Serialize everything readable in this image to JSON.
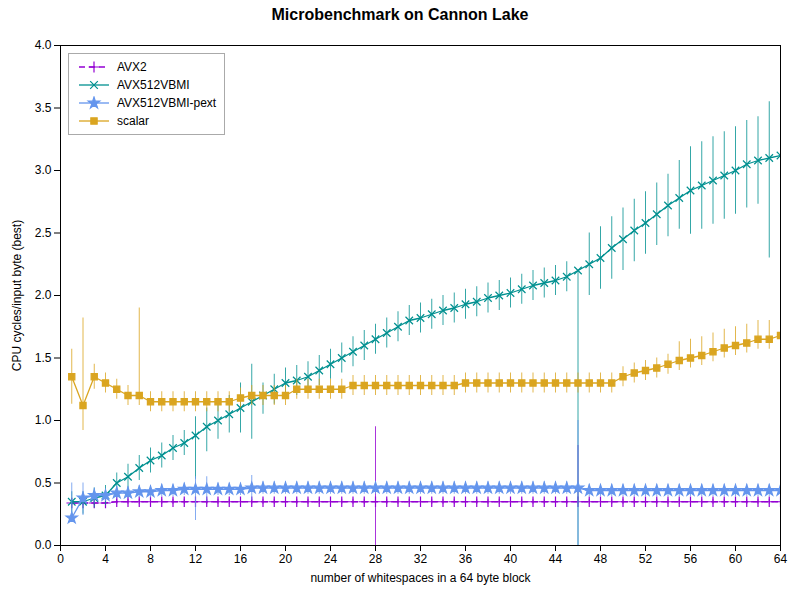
{
  "chart_data": {
    "type": "line",
    "title": "Microbenchmark on Cannon Lake",
    "x_label": "number of whitespaces in a 64 byte block",
    "y_label": "CPU cycles/input byte (best)",
    "x": [
      1,
      2,
      3,
      4,
      5,
      6,
      7,
      8,
      9,
      10,
      11,
      12,
      13,
      14,
      15,
      16,
      17,
      18,
      19,
      20,
      21,
      22,
      23,
      24,
      25,
      26,
      27,
      28,
      29,
      30,
      31,
      32,
      33,
      34,
      35,
      36,
      37,
      38,
      39,
      40,
      41,
      42,
      43,
      44,
      45,
      46,
      47,
      48,
      49,
      50,
      51,
      52,
      53,
      54,
      55,
      56,
      57,
      58,
      59,
      60,
      61,
      62,
      63,
      64
    ],
    "xlim": [
      0,
      64
    ],
    "ylim": [
      0,
      4
    ],
    "xticks": [
      0,
      4,
      8,
      12,
      16,
      20,
      24,
      28,
      32,
      36,
      40,
      44,
      48,
      52,
      56,
      60,
      64
    ],
    "yticks": [
      {
        "value": 0,
        "label": "0.0"
      },
      0.5,
      {
        "value": 1.0,
        "label": "1.0"
      },
      1.5,
      {
        "value": 2.0,
        "label": "2.0"
      },
      2.5,
      {
        "value": 3.0,
        "label": "3.0"
      },
      3.5,
      {
        "value": 4.0,
        "label": "4.0"
      }
    ],
    "grid": false,
    "legend": "upper left",
    "series": [
      {
        "name": "AVX2",
        "color": "#9400d3",
        "marker": "plus",
        "line_style": "dashed",
        "values": [
          0.34,
          0.34,
          0.34,
          0.34,
          0.35,
          0.35,
          0.35,
          0.35,
          0.35,
          0.35,
          0.35,
          0.35,
          0.35,
          0.35,
          0.35,
          0.35,
          0.35,
          0.35,
          0.35,
          0.35,
          0.35,
          0.35,
          0.35,
          0.35,
          0.35,
          0.35,
          0.35,
          0.35,
          0.35,
          0.35,
          0.35,
          0.35,
          0.35,
          0.35,
          0.35,
          0.35,
          0.35,
          0.35,
          0.35,
          0.35,
          0.35,
          0.35,
          0.35,
          0.35,
          0.35,
          0.35,
          0.35,
          0.35,
          0.35,
          0.35,
          0.35,
          0.35,
          0.35,
          0.35,
          0.35,
          0.35,
          0.35,
          0.35,
          0.35,
          0.35,
          0.35,
          0.35,
          0.35,
          0.35
        ],
        "errors_low": [
          0.02,
          0.02,
          0.02,
          0.02,
          0.02,
          0.02,
          0.02,
          0.02,
          0.02,
          0.02,
          0.02,
          0.02,
          0.02,
          0.02,
          0.02,
          0.02,
          0.02,
          0.02,
          0.02,
          0.02,
          0.02,
          0.02,
          0.02,
          0.02,
          0.02,
          0.02,
          0.02,
          0.35,
          0.02,
          0.02,
          0.02,
          0.02,
          0.02,
          0.02,
          0.02,
          0.02,
          0.02,
          0.02,
          0.02,
          0.02,
          0.02,
          0.02,
          0.02,
          0.02,
          0.02,
          0.02,
          0.02,
          0.02,
          0.02,
          0.02,
          0.02,
          0.02,
          0.02,
          0.02,
          0.02,
          0.02,
          0.02,
          0.02,
          0.02,
          0.02,
          0.02,
          0.02,
          0.02,
          0.02
        ],
        "errors_high": [
          0.02,
          0.02,
          0.02,
          0.02,
          0.02,
          0.02,
          0.02,
          0.02,
          0.02,
          0.02,
          0.02,
          0.02,
          0.02,
          0.02,
          0.02,
          0.02,
          0.02,
          0.02,
          0.02,
          0.02,
          0.02,
          0.02,
          0.02,
          0.02,
          0.02,
          0.02,
          0.02,
          0.6,
          0.02,
          0.02,
          0.02,
          0.02,
          0.02,
          0.02,
          0.02,
          0.02,
          0.02,
          0.02,
          0.02,
          0.02,
          0.02,
          0.02,
          0.02,
          0.02,
          0.02,
          0.45,
          0.02,
          0.02,
          0.02,
          0.02,
          0.02,
          0.02,
          0.02,
          0.02,
          0.02,
          0.02,
          0.02,
          0.02,
          0.02,
          0.02,
          0.02,
          0.02,
          0.02,
          0.02
        ]
      },
      {
        "name": "AVX512VBMI",
        "color": "#009090",
        "marker": "cross",
        "line_style": "solid",
        "values": [
          0.35,
          0.35,
          0.38,
          0.4,
          0.5,
          0.55,
          0.62,
          0.68,
          0.72,
          0.78,
          0.82,
          0.88,
          0.95,
          1.0,
          1.05,
          1.1,
          1.15,
          1.2,
          1.25,
          1.3,
          1.32,
          1.35,
          1.4,
          1.45,
          1.5,
          1.55,
          1.6,
          1.65,
          1.7,
          1.75,
          1.8,
          1.82,
          1.85,
          1.88,
          1.9,
          1.93,
          1.95,
          1.98,
          2.0,
          2.02,
          2.05,
          2.08,
          2.1,
          2.12,
          2.15,
          2.2,
          2.25,
          2.3,
          2.38,
          2.45,
          2.52,
          2.58,
          2.65,
          2.72,
          2.78,
          2.84,
          2.88,
          2.92,
          2.96,
          3.0,
          3.05,
          3.08,
          3.1,
          3.12
        ],
        "errors_low": [
          0.12,
          0.1,
          0.08,
          0.08,
          0.08,
          0.1,
          0.1,
          0.1,
          0.1,
          0.1,
          0.1,
          0.35,
          0.2,
          0.15,
          0.15,
          0.2,
          0.3,
          0.15,
          0.12,
          0.12,
          0.12,
          0.12,
          0.12,
          0.12,
          0.12,
          0.12,
          0.12,
          0.12,
          0.12,
          0.12,
          0.12,
          0.12,
          0.12,
          0.12,
          0.12,
          0.12,
          0.12,
          0.12,
          0.12,
          0.12,
          0.12,
          0.12,
          0.12,
          0.12,
          0.12,
          2.2,
          0.25,
          0.25,
          0.25,
          0.25,
          0.25,
          0.25,
          0.25,
          0.25,
          0.25,
          0.35,
          0.35,
          0.35,
          0.35,
          0.35,
          0.35,
          0.35,
          0.8,
          0.4
        ],
        "errors_high": [
          0.08,
          0.08,
          0.08,
          0.08,
          0.08,
          0.1,
          0.1,
          0.1,
          0.1,
          0.1,
          0.1,
          0.15,
          0.15,
          0.15,
          0.15,
          0.2,
          0.3,
          0.1,
          0.12,
          0.12,
          0.12,
          0.12,
          0.12,
          0.12,
          0.12,
          0.12,
          0.12,
          0.12,
          0.12,
          0.12,
          0.12,
          0.12,
          0.12,
          0.12,
          0.12,
          0.12,
          0.12,
          0.12,
          0.12,
          0.12,
          0.12,
          0.12,
          0.12,
          0.12,
          0.12,
          0.0,
          0.25,
          0.25,
          0.25,
          0.25,
          0.25,
          0.25,
          0.25,
          0.25,
          0.3,
          0.35,
          0.35,
          0.35,
          0.35,
          0.35,
          0.35,
          0.35,
          0.45,
          0.4
        ]
      },
      {
        "name": "AVX512VBMI-pext",
        "color": "#6495ed",
        "marker": "star",
        "line_style": "solid",
        "values": [
          0.22,
          0.38,
          0.4,
          0.4,
          0.42,
          0.42,
          0.43,
          0.43,
          0.44,
          0.44,
          0.45,
          0.45,
          0.45,
          0.45,
          0.45,
          0.45,
          0.46,
          0.46,
          0.46,
          0.46,
          0.46,
          0.46,
          0.46,
          0.46,
          0.46,
          0.46,
          0.46,
          0.46,
          0.46,
          0.46,
          0.46,
          0.46,
          0.46,
          0.46,
          0.46,
          0.46,
          0.46,
          0.46,
          0.46,
          0.46,
          0.46,
          0.46,
          0.46,
          0.46,
          0.46,
          0.46,
          0.44,
          0.44,
          0.44,
          0.44,
          0.44,
          0.44,
          0.44,
          0.44,
          0.44,
          0.44,
          0.44,
          0.44,
          0.44,
          0.44,
          0.44,
          0.44,
          0.44,
          0.44
        ],
        "errors_low": [
          0.02,
          0.14,
          0.06,
          0.05,
          0.05,
          0.05,
          0.05,
          0.05,
          0.05,
          0.05,
          0.05,
          0.25,
          0.1,
          0.05,
          0.05,
          0.05,
          0.1,
          0.05,
          0.05,
          0.05,
          0.05,
          0.05,
          0.05,
          0.05,
          0.05,
          0.05,
          0.05,
          0.05,
          0.05,
          0.05,
          0.05,
          0.05,
          0.05,
          0.05,
          0.05,
          0.05,
          0.05,
          0.05,
          0.05,
          0.05,
          0.05,
          0.05,
          0.05,
          0.05,
          0.05,
          0.46,
          0.05,
          0.05,
          0.05,
          0.05,
          0.05,
          0.05,
          0.05,
          0.05,
          0.05,
          0.05,
          0.05,
          0.05,
          0.05,
          0.05,
          0.05,
          0.05,
          0.05,
          0.05
        ],
        "errors_high": [
          0.28,
          0.12,
          0.06,
          0.05,
          0.05,
          0.05,
          0.05,
          0.05,
          0.05,
          0.05,
          0.05,
          0.1,
          0.1,
          0.05,
          0.05,
          0.05,
          0.1,
          0.05,
          0.05,
          0.05,
          0.05,
          0.05,
          0.05,
          0.05,
          0.05,
          0.05,
          0.05,
          0.05,
          0.05,
          0.05,
          0.05,
          0.05,
          0.05,
          0.05,
          0.05,
          0.05,
          0.05,
          0.05,
          0.05,
          0.05,
          0.05,
          0.05,
          0.05,
          0.05,
          0.05,
          0.54,
          0.05,
          0.05,
          0.05,
          0.05,
          0.05,
          0.05,
          0.05,
          0.05,
          0.05,
          0.05,
          0.05,
          0.05,
          0.05,
          0.05,
          0.05,
          0.05,
          0.05,
          0.05
        ]
      },
      {
        "name": "scalar",
        "color": "#daa520",
        "marker": "square",
        "line_style": "solid",
        "values": [
          1.35,
          1.12,
          1.35,
          1.3,
          1.25,
          1.2,
          1.2,
          1.15,
          1.15,
          1.15,
          1.15,
          1.15,
          1.15,
          1.15,
          1.15,
          1.18,
          1.2,
          1.2,
          1.2,
          1.2,
          1.25,
          1.25,
          1.25,
          1.25,
          1.25,
          1.28,
          1.28,
          1.28,
          1.28,
          1.28,
          1.28,
          1.28,
          1.28,
          1.28,
          1.28,
          1.3,
          1.3,
          1.3,
          1.3,
          1.3,
          1.3,
          1.3,
          1.3,
          1.3,
          1.3,
          1.3,
          1.3,
          1.3,
          1.3,
          1.35,
          1.38,
          1.4,
          1.42,
          1.45,
          1.48,
          1.5,
          1.52,
          1.55,
          1.58,
          1.6,
          1.62,
          1.65,
          1.65,
          1.68
        ],
        "errors_low": [
          0.22,
          0.2,
          0.1,
          0.08,
          0.08,
          0.08,
          0.08,
          0.08,
          0.08,
          0.08,
          0.08,
          0.08,
          0.08,
          0.08,
          0.08,
          0.08,
          0.08,
          0.08,
          0.08,
          0.08,
          0.08,
          0.08,
          0.08,
          0.08,
          0.08,
          0.08,
          0.08,
          0.08,
          0.08,
          0.08,
          0.08,
          0.08,
          0.08,
          0.08,
          0.08,
          0.08,
          0.08,
          0.08,
          0.08,
          0.08,
          0.08,
          0.08,
          0.08,
          0.08,
          0.08,
          0.08,
          0.08,
          0.08,
          0.08,
          0.08,
          0.08,
          0.08,
          0.08,
          0.08,
          0.08,
          0.08,
          0.08,
          0.08,
          0.08,
          0.08,
          0.08,
          0.08,
          0.08,
          0.2
        ],
        "errors_high": [
          0.22,
          0.7,
          0.1,
          0.08,
          0.08,
          0.08,
          0.7,
          0.08,
          0.08,
          0.08,
          0.08,
          0.08,
          0.08,
          0.08,
          0.08,
          0.08,
          0.08,
          0.08,
          0.08,
          0.08,
          0.08,
          0.08,
          0.08,
          0.08,
          0.08,
          0.08,
          0.08,
          0.08,
          0.08,
          0.08,
          0.08,
          0.08,
          0.08,
          0.08,
          0.08,
          0.08,
          0.08,
          0.08,
          0.08,
          0.08,
          0.08,
          0.08,
          0.08,
          0.08,
          0.08,
          0.08,
          0.08,
          0.08,
          0.08,
          0.08,
          0.08,
          0.08,
          0.08,
          0.08,
          0.15,
          0.15,
          0.15,
          0.15,
          0.15,
          0.15,
          0.15,
          0.15,
          0.15,
          0.32
        ]
      }
    ]
  }
}
